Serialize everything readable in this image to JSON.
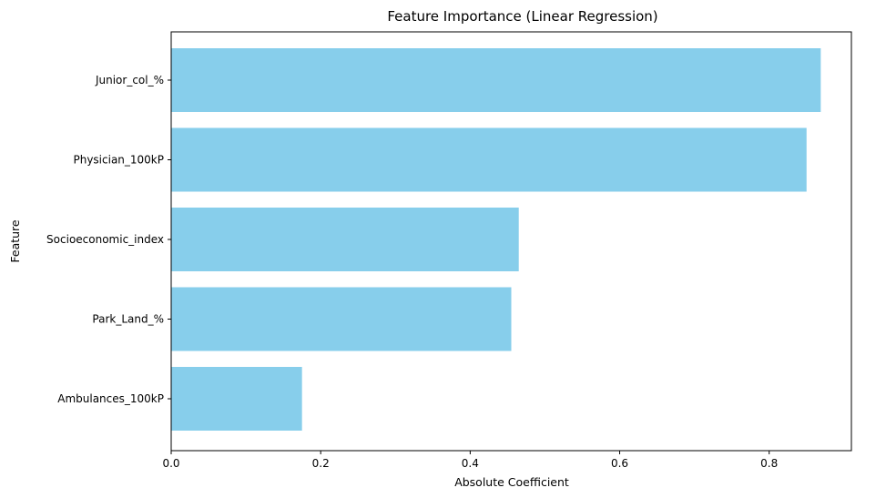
{
  "chart_data": {
    "type": "bar",
    "orientation": "horizontal",
    "title": "Feature Importance (Linear Regression)",
    "xlabel": "Absolute Coefficient",
    "ylabel": "Feature",
    "categories": [
      "Junior_col_%",
      "Physician_100kP",
      "Socioeconomic_index",
      "Park_Land_%",
      "Ambulances_100kP"
    ],
    "values": [
      0.869,
      0.85,
      0.465,
      0.455,
      0.175
    ],
    "xlim": [
      0,
      0.91
    ],
    "xticks": [
      0.0,
      0.2,
      0.4,
      0.6,
      0.8
    ],
    "xtick_labels": [
      "0.0",
      "0.2",
      "0.4",
      "0.6",
      "0.8"
    ],
    "grid": false,
    "bar_color": "#87ceeb"
  }
}
